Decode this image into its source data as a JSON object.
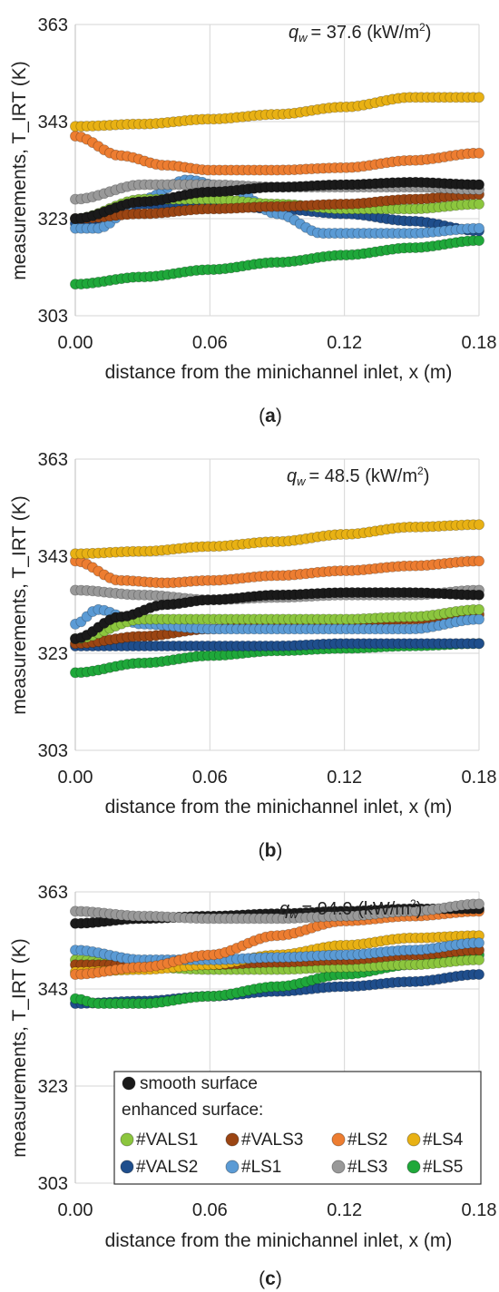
{
  "colors": {
    "smooth": "#1a1a1a",
    "VALS1": "#8cc63e",
    "VALS3": "#9b4513",
    "LS2": "#ed7d31",
    "LS4": "#e8b114",
    "VALS2": "#1f4e8c",
    "LS1": "#5b9bd5",
    "LS3": "#999999",
    "LS5": "#1fa83a"
  },
  "legend": {
    "smooth": "smooth surface",
    "enhanced_header": "enhanced surface:",
    "items": [
      {
        "key": "VALS1",
        "label": "#VALS1"
      },
      {
        "key": "VALS3",
        "label": "#VALS3"
      },
      {
        "key": "LS2",
        "label": "#LS2"
      },
      {
        "key": "LS4",
        "label": "#LS4"
      },
      {
        "key": "VALS2",
        "label": "#VALS2"
      },
      {
        "key": "LS1",
        "label": "#LS1"
      },
      {
        "key": "LS3",
        "label": "#LS3"
      },
      {
        "key": "LS5",
        "label": "#LS5"
      }
    ]
  },
  "chart_data": [
    {
      "type": "scatter",
      "caption": "a",
      "annotation": {
        "symbol": "q",
        "subscript": "w",
        "value": "= 37.6 (kW/m",
        "exp": "2",
        "close": ")"
      },
      "xlabel": "distance from the minichannel inlet, x (m)",
      "ylabel": "measurements, T_IRT (K)",
      "xlim": [
        0,
        0.18
      ],
      "ylim": [
        303,
        363
      ],
      "xticks": [
        "0.00",
        "0.06",
        "0.12",
        "0.18"
      ],
      "yticks": [
        "303",
        "323",
        "343",
        "363"
      ],
      "grid": true,
      "series": [
        {
          "key": "LS5",
          "x": [
            0,
            0.03,
            0.06,
            0.09,
            0.12,
            0.15,
            0.18
          ],
          "y": [
            309.5,
            311,
            312.5,
            314,
            315.5,
            317,
            318.5
          ]
        },
        {
          "key": "VALS2",
          "x": [
            0,
            0.03,
            0.06,
            0.09,
            0.12,
            0.15,
            0.18
          ],
          "y": [
            322,
            326,
            326,
            325,
            324,
            322.5,
            320.5
          ]
        },
        {
          "key": "LS1",
          "x": [
            0,
            0.01,
            0.03,
            0.05,
            0.07,
            0.09,
            0.11,
            0.13,
            0.15,
            0.18
          ],
          "y": [
            321,
            321,
            327,
            331,
            329,
            324,
            320,
            320,
            320,
            321
          ]
        },
        {
          "key": "VALS1",
          "x": [
            0,
            0.03,
            0.06,
            0.09,
            0.12,
            0.15,
            0.18
          ],
          "y": [
            323,
            327,
            327,
            326,
            325,
            325,
            326
          ]
        },
        {
          "key": "VALS3",
          "x": [
            0,
            0.03,
            0.06,
            0.09,
            0.12,
            0.15,
            0.18
          ],
          "y": [
            323,
            324,
            325,
            325.5,
            326,
            327,
            328
          ]
        },
        {
          "key": "LS3",
          "x": [
            0,
            0.03,
            0.06,
            0.09,
            0.12,
            0.15,
            0.18
          ],
          "y": [
            327,
            330,
            330,
            329.5,
            329.5,
            329.5,
            329
          ]
        },
        {
          "key": "smooth",
          "x": [
            0,
            0.03,
            0.06,
            0.09,
            0.12,
            0.15,
            0.18
          ],
          "y": [
            323,
            326.5,
            328.5,
            329.5,
            330,
            330.5,
            330
          ]
        },
        {
          "key": "LS2",
          "x": [
            0,
            0.02,
            0.04,
            0.06,
            0.09,
            0.12,
            0.15,
            0.18
          ],
          "y": [
            340,
            336,
            334,
            333,
            333,
            333.5,
            335,
            336.5
          ]
        },
        {
          "key": "LS4",
          "x": [
            0,
            0.03,
            0.06,
            0.09,
            0.12,
            0.15,
            0.18
          ],
          "y": [
            342,
            342.5,
            343.5,
            344.5,
            346,
            348,
            348
          ]
        }
      ]
    },
    {
      "type": "scatter",
      "caption": "b",
      "annotation": {
        "symbol": "q",
        "subscript": "w",
        "value": "= 48.5 (kW/m",
        "exp": "2",
        "close": ")"
      },
      "xlabel": "distance from the minichannel inlet, x (m)",
      "ylabel": "measurements, T_IRT (K)",
      "xlim": [
        0,
        0.18
      ],
      "ylim": [
        303,
        363
      ],
      "xticks": [
        "0.00",
        "0.06",
        "0.12",
        "0.18"
      ],
      "yticks": [
        "303",
        "323",
        "343",
        "363"
      ],
      "grid": true,
      "series": [
        {
          "key": "LS5",
          "x": [
            0,
            0.03,
            0.06,
            0.09,
            0.12,
            0.15,
            0.18
          ],
          "y": [
            319,
            321,
            322.5,
            323.5,
            324,
            324.5,
            325
          ]
        },
        {
          "key": "VALS2",
          "x": [
            0,
            0.03,
            0.06,
            0.09,
            0.12,
            0.15,
            0.18
          ],
          "y": [
            324.5,
            324.5,
            324.5,
            324.5,
            325,
            325,
            325
          ]
        },
        {
          "key": "VALS3",
          "x": [
            0,
            0.03,
            0.06,
            0.09,
            0.12,
            0.15,
            0.18
          ],
          "y": [
            325,
            326.5,
            328,
            329,
            329.5,
            330,
            331
          ]
        },
        {
          "key": "LS1",
          "x": [
            0,
            0.01,
            0.03,
            0.06,
            0.09,
            0.12,
            0.15,
            0.18
          ],
          "y": [
            329,
            332,
            329,
            328,
            328,
            328,
            328,
            330
          ]
        },
        {
          "key": "VALS1",
          "x": [
            0,
            0.03,
            0.06,
            0.09,
            0.12,
            0.15,
            0.18
          ],
          "y": [
            326,
            330,
            330,
            330,
            330,
            330.5,
            332
          ]
        },
        {
          "key": "LS3",
          "x": [
            0,
            0.03,
            0.06,
            0.09,
            0.12,
            0.15,
            0.18
          ],
          "y": [
            336,
            335,
            334,
            334.5,
            335,
            335,
            336
          ]
        },
        {
          "key": "smooth",
          "x": [
            0,
            0.02,
            0.04,
            0.06,
            0.09,
            0.12,
            0.15,
            0.18
          ],
          "y": [
            326,
            330.5,
            333,
            334,
            335,
            335.5,
            335.5,
            335
          ]
        },
        {
          "key": "LS2",
          "x": [
            0,
            0.02,
            0.04,
            0.06,
            0.09,
            0.12,
            0.15,
            0.18
          ],
          "y": [
            342,
            338,
            337.5,
            338,
            339,
            340,
            341,
            342
          ]
        },
        {
          "key": "LS4",
          "x": [
            0,
            0.03,
            0.06,
            0.09,
            0.12,
            0.15,
            0.18
          ],
          "y": [
            343.5,
            344,
            345,
            346,
            347.5,
            349,
            349.5
          ]
        }
      ]
    },
    {
      "type": "scatter",
      "caption": "c",
      "annotation": {
        "symbol": "q",
        "subscript": "w",
        "value": "= 94.9 (kW/m",
        "exp": "2",
        "close": ")"
      },
      "xlabel": "distance from the minichannel inlet, x (m)",
      "ylabel": "measurements, T_IRT (K)",
      "xlim": [
        0,
        0.18
      ],
      "ylim": [
        303,
        363
      ],
      "xticks": [
        "0.00",
        "0.06",
        "0.12",
        "0.18"
      ],
      "yticks": [
        "303",
        "323",
        "343",
        "363"
      ],
      "grid": true,
      "series": [
        {
          "key": "VALS2",
          "x": [
            0,
            0.03,
            0.06,
            0.09,
            0.12,
            0.15,
            0.18
          ],
          "y": [
            340,
            340.5,
            341.5,
            342.5,
            343.5,
            344.5,
            346
          ]
        },
        {
          "key": "LS5",
          "x": [
            0,
            0.01,
            0.03,
            0.06,
            0.09,
            0.12,
            0.15,
            0.18
          ],
          "y": [
            341,
            340,
            340,
            341.5,
            343.5,
            346,
            348,
            350
          ]
        },
        {
          "key": "VALS1",
          "x": [
            0,
            0.03,
            0.06,
            0.09,
            0.12,
            0.15,
            0.18
          ],
          "y": [
            349,
            347.5,
            347,
            347,
            347.5,
            348,
            349
          ]
        },
        {
          "key": "VALS3",
          "x": [
            0,
            0.03,
            0.06,
            0.09,
            0.12,
            0.15,
            0.18
          ],
          "y": [
            348,
            348,
            348,
            348.5,
            349,
            350,
            351
          ]
        },
        {
          "key": "LS4",
          "x": [
            0,
            0.03,
            0.06,
            0.09,
            0.12,
            0.15,
            0.18
          ],
          "y": [
            346.5,
            347,
            348,
            350,
            352,
            353.5,
            354
          ]
        },
        {
          "key": "LS1",
          "x": [
            0,
            0.03,
            0.06,
            0.09,
            0.12,
            0.15,
            0.18
          ],
          "y": [
            351,
            349,
            349,
            349.5,
            350,
            351,
            352.5
          ]
        },
        {
          "key": "LS2",
          "x": [
            0,
            0.03,
            0.06,
            0.09,
            0.12,
            0.15,
            0.18
          ],
          "y": [
            346,
            347.5,
            350,
            354,
            357,
            358,
            359
          ]
        },
        {
          "key": "smooth",
          "x": [
            0,
            0.03,
            0.06,
            0.09,
            0.12,
            0.15,
            0.18
          ],
          "y": [
            356.5,
            357.5,
            358,
            358.5,
            359,
            359.5,
            359.5
          ]
        },
        {
          "key": "LS3",
          "x": [
            0,
            0.03,
            0.06,
            0.09,
            0.12,
            0.15,
            0.18
          ],
          "y": [
            359,
            358,
            357.5,
            357.5,
            358,
            359,
            360.5
          ]
        }
      ]
    }
  ]
}
